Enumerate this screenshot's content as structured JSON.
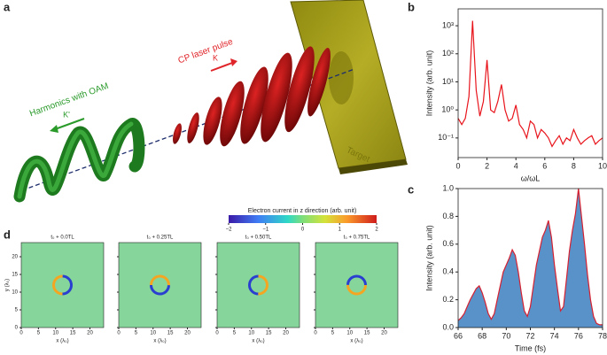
{
  "panel_labels": [
    "a",
    "b",
    "c",
    "d"
  ],
  "panel_a": {
    "harmonics_label": "Harmonics with OAM",
    "k_prime": "K'",
    "pulse_label": "CP laser pulse",
    "k": "K",
    "target_label": "Target"
  },
  "chart_data": [
    {
      "type": "line",
      "log_y": true,
      "ylabel": "Intensity (arb. unit)",
      "xlabel": "ω/ωL",
      "x": [
        0,
        0.25,
        0.5,
        0.75,
        1,
        1.25,
        1.5,
        1.75,
        2,
        2.25,
        2.5,
        2.75,
        3,
        3.25,
        3.5,
        3.75,
        4,
        4.25,
        4.5,
        4.75,
        5,
        5.25,
        5.5,
        5.75,
        6,
        6.25,
        6.5,
        6.75,
        7,
        7.25,
        7.5,
        7.75,
        8,
        8.25,
        8.5,
        8.75,
        9,
        9.25,
        9.5,
        9.75,
        10
      ],
      "series": [
        {
          "color": "#e8141b",
          "values": [
            0.5,
            0.3,
            0.5,
            3,
            1500,
            5,
            0.6,
            2,
            60,
            1,
            0.8,
            2,
            8,
            1,
            0.4,
            0.5,
            1.5,
            0.3,
            0.2,
            0.1,
            0.4,
            0.3,
            0.1,
            0.2,
            0.15,
            0.1,
            0.05,
            0.08,
            0.12,
            0.06,
            0.1,
            0.08,
            0.2,
            0.1,
            0.06,
            0.08,
            0.1,
            0.12,
            0.06,
            0.08,
            0.1
          ]
        }
      ],
      "xlim": [
        0,
        10
      ],
      "xticks": [
        0,
        2,
        4,
        6,
        8,
        10
      ],
      "ylim": [
        0.02,
        4000
      ],
      "yticks": [
        {
          "value": 0.1,
          "label": "10⁻¹"
        },
        {
          "value": 1,
          "label": "10⁰"
        },
        {
          "value": 10,
          "label": "10¹"
        },
        {
          "value": 100,
          "label": "10²"
        },
        {
          "value": 1000,
          "label": "10³"
        }
      ]
    },
    {
      "type": "line",
      "ylabel": "Intensity (arb. unit)",
      "xlabel": "Time (fs)",
      "fill_color": "#3b7fc0",
      "x": [
        66,
        66.25,
        66.5,
        66.75,
        67,
        67.25,
        67.5,
        67.75,
        68,
        68.25,
        68.5,
        68.75,
        69,
        69.25,
        69.5,
        69.75,
        70,
        70.25,
        70.5,
        70.75,
        71,
        71.25,
        71.5,
        71.75,
        72,
        72.25,
        72.5,
        72.75,
        73,
        73.25,
        73.5,
        73.75,
        74,
        74.25,
        74.5,
        74.75,
        75,
        75.25,
        75.5,
        75.75,
        76,
        76.25,
        76.5,
        76.75,
        77,
        77.25,
        77.5,
        77.75,
        78
      ],
      "series": [
        {
          "color": "#d62030",
          "values": [
            0.05,
            0.07,
            0.1,
            0.15,
            0.2,
            0.24,
            0.28,
            0.3,
            0.25,
            0.18,
            0.1,
            0.06,
            0.1,
            0.2,
            0.3,
            0.4,
            0.45,
            0.5,
            0.56,
            0.52,
            0.4,
            0.25,
            0.12,
            0.08,
            0.15,
            0.3,
            0.45,
            0.55,
            0.65,
            0.7,
            0.77,
            0.65,
            0.45,
            0.28,
            0.12,
            0.15,
            0.35,
            0.55,
            0.7,
            0.82,
            1.0,
            0.8,
            0.6,
            0.38,
            0.2,
            0.08,
            0.03,
            0.02,
            0.02
          ]
        }
      ],
      "xlim": [
        66,
        78
      ],
      "xticks": [
        66,
        68,
        70,
        72,
        74,
        76,
        78
      ],
      "ylim": [
        0,
        1
      ],
      "yticks": [
        {
          "value": 0,
          "label": "0.0"
        },
        {
          "value": 0.2,
          "label": "0.2"
        },
        {
          "value": 0.4,
          "label": "0.4"
        },
        {
          "value": 0.6,
          "label": "0.6"
        },
        {
          "value": 0.8,
          "label": "0.8"
        },
        {
          "value": 1,
          "label": "1.0"
        }
      ]
    }
  ],
  "panel_d": {
    "colorbar": {
      "title": "Electron current in z direction (arb. unit)",
      "clim": [
        -2,
        2
      ],
      "ticks": [
        {
          "value": -2,
          "label": "−2"
        },
        {
          "value": -1,
          "label": "−1"
        },
        0,
        1,
        2
      ]
    },
    "subplots": [
      "t₀ + 0.0TL",
      "t₀ + 0.25TL",
      "t₀ + 0.50TL",
      "t₀ + 0.75TL"
    ],
    "xlabel": "x (λ₀)",
    "ylabel": "y (λ₀)",
    "xlim": [
      0,
      24
    ],
    "ylim": [
      0,
      24
    ],
    "xticks": [
      0,
      5,
      10,
      15,
      20
    ],
    "yticks": [
      0,
      5,
      10,
      15,
      20
    ]
  }
}
